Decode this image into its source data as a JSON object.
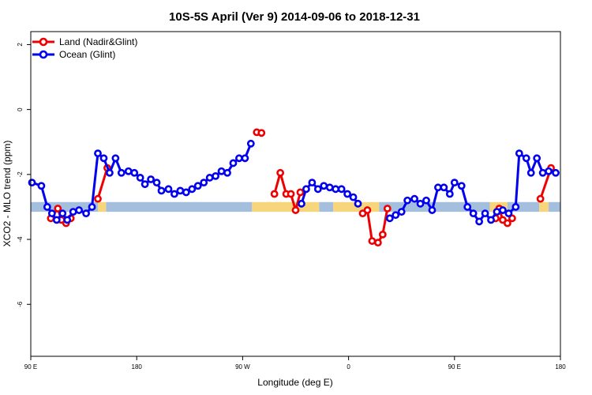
{
  "chart_data": {
    "type": "line",
    "title": "10S-5S April (Ver 9)   2014-09-06 to 2018-12-31",
    "xlabel": "Longitude (deg E)",
    "ylabel": "XCO2 - MLO trend (ppm)",
    "xlim": [
      90,
      540
    ],
    "ylim": [
      -7.6,
      2.4
    ],
    "x_ticks": [
      {
        "value": 90,
        "label": "90 E"
      },
      {
        "value": 180,
        "label": "180"
      },
      {
        "value": 270,
        "label": "90 W"
      },
      {
        "value": 360,
        "label": "0"
      },
      {
        "value": 450,
        "label": "90 E"
      },
      {
        "value": 540,
        "label": "180"
      }
    ],
    "y_ticks": [
      {
        "value": 2,
        "label": "2"
      },
      {
        "value": 0,
        "label": "0"
      },
      {
        "value": -2,
        "label": "-2"
      },
      {
        "value": -4,
        "label": "-4"
      },
      {
        "value": -6,
        "label": "-6"
      }
    ],
    "legend": {
      "position": "top-left",
      "entries": [
        {
          "name": "Land (Nadir&Glint)",
          "color": "#ee0000"
        },
        {
          "name": "Ocean (Glint)",
          "color": "#0000ee"
        }
      ]
    },
    "band": {
      "y_range": [
        -3.15,
        -2.85
      ],
      "segments": [
        {
          "x": [
            90,
            147
          ],
          "type": "ocean"
        },
        {
          "x": [
            147,
            154
          ],
          "type": "land"
        },
        {
          "x": [
            154,
            278
          ],
          "type": "ocean"
        },
        {
          "x": [
            278,
            335
          ],
          "type": "land"
        },
        {
          "x": [
            335,
            347
          ],
          "type": "ocean"
        },
        {
          "x": [
            347,
            386
          ],
          "type": "land"
        },
        {
          "x": [
            386,
            480
          ],
          "type": "ocean"
        },
        {
          "x": [
            480,
            495
          ],
          "type": "land"
        },
        {
          "x": [
            495,
            522
          ],
          "type": "ocean"
        },
        {
          "x": [
            522,
            530
          ],
          "type": "land"
        },
        {
          "x": [
            530,
            540
          ],
          "type": "ocean"
        }
      ],
      "colors": {
        "ocean": "#a4bede",
        "land": "#f7d57a"
      }
    },
    "series": [
      {
        "name": "Land (Nadir&Glint)",
        "color": "#ee0000",
        "segments": [
          [
            [
              107,
              -3.35
            ],
            [
              113,
              -3.05
            ],
            [
              116,
              -3.4
            ],
            [
              120,
              -3.5
            ],
            [
              124,
              -3.35
            ]
          ],
          [
            [
              147,
              -2.75
            ],
            [
              155,
              -1.8
            ]
          ],
          [
            [
              282,
              -0.7
            ],
            [
              286,
              -0.72
            ]
          ],
          [
            [
              297,
              -2.6
            ],
            [
              302,
              -1.95
            ],
            [
              307,
              -2.6
            ],
            [
              311,
              -2.6
            ],
            [
              315,
              -3.1
            ],
            [
              319,
              -2.55
            ]
          ],
          [
            [
              372,
              -3.2
            ],
            [
              376,
              -3.1
            ],
            [
              380,
              -4.05
            ],
            [
              385,
              -4.1
            ],
            [
              389,
              -3.85
            ],
            [
              393,
              -3.05
            ]
          ],
          [
            [
              485,
              -3.35
            ],
            [
              488,
              -3.05
            ],
            [
              491,
              -3.4
            ],
            [
              495,
              -3.5
            ],
            [
              499,
              -3.35
            ]
          ],
          [
            [
              523,
              -2.75
            ],
            [
              532,
              -1.8
            ]
          ]
        ]
      },
      {
        "name": "Ocean (Glint)",
        "color": "#0000ee",
        "segments": [
          [
            [
              91,
              -2.25
            ],
            [
              99,
              -2.35
            ],
            [
              104,
              -3.0
            ],
            [
              108,
              -3.2
            ],
            [
              112,
              -3.4
            ],
            [
              117,
              -3.2
            ],
            [
              121,
              -3.4
            ],
            [
              126,
              -3.15
            ],
            [
              131,
              -3.1
            ],
            [
              137,
              -3.2
            ],
            [
              142,
              -3.0
            ],
            [
              147,
              -1.35
            ],
            [
              152,
              -1.5
            ],
            [
              157,
              -1.95
            ],
            [
              162,
              -1.5
            ],
            [
              167,
              -1.95
            ],
            [
              173,
              -1.9
            ],
            [
              178,
              -1.95
            ],
            [
              183,
              -2.1
            ],
            [
              187,
              -2.3
            ],
            [
              192,
              -2.15
            ],
            [
              197,
              -2.25
            ],
            [
              201,
              -2.5
            ],
            [
              207,
              -2.45
            ],
            [
              212,
              -2.6
            ],
            [
              217,
              -2.5
            ],
            [
              222,
              -2.55
            ],
            [
              227,
              -2.45
            ],
            [
              232,
              -2.35
            ],
            [
              237,
              -2.25
            ],
            [
              242,
              -2.1
            ],
            [
              247,
              -2.05
            ],
            [
              252,
              -1.9
            ],
            [
              257,
              -1.95
            ],
            [
              262,
              -1.65
            ],
            [
              267,
              -1.5
            ],
            [
              272,
              -1.5
            ],
            [
              277,
              -1.05
            ]
          ],
          [
            [
              320,
              -2.9
            ],
            [
              324,
              -2.45
            ],
            [
              329,
              -2.25
            ],
            [
              334,
              -2.45
            ],
            [
              339,
              -2.35
            ],
            [
              344,
              -2.4
            ],
            [
              349,
              -2.45
            ],
            [
              354,
              -2.45
            ],
            [
              359,
              -2.6
            ],
            [
              364,
              -2.7
            ],
            [
              368,
              -2.9
            ]
          ],
          [
            [
              395,
              -3.35
            ],
            [
              400,
              -3.25
            ],
            [
              405,
              -3.15
            ],
            [
              410,
              -2.8
            ],
            [
              416,
              -2.75
            ],
            [
              421,
              -2.9
            ],
            [
              426,
              -2.8
            ],
            [
              431,
              -3.1
            ],
            [
              436,
              -2.4
            ],
            [
              441,
              -2.4
            ],
            [
              446,
              -2.6
            ],
            [
              450,
              -2.25
            ],
            [
              456,
              -2.35
            ],
            [
              461,
              -3.0
            ],
            [
              466,
              -3.2
            ],
            [
              471,
              -3.45
            ],
            [
              476,
              -3.2
            ],
            [
              481,
              -3.4
            ],
            [
              486,
              -3.15
            ],
            [
              491,
              -3.1
            ],
            [
              496,
              -3.2
            ],
            [
              502,
              -3.0
            ],
            [
              505,
              -1.35
            ],
            [
              511,
              -1.5
            ],
            [
              515,
              -1.95
            ],
            [
              520,
              -1.5
            ],
            [
              525,
              -1.95
            ],
            [
              530,
              -1.9
            ],
            [
              536,
              -1.95
            ]
          ]
        ]
      }
    ]
  }
}
